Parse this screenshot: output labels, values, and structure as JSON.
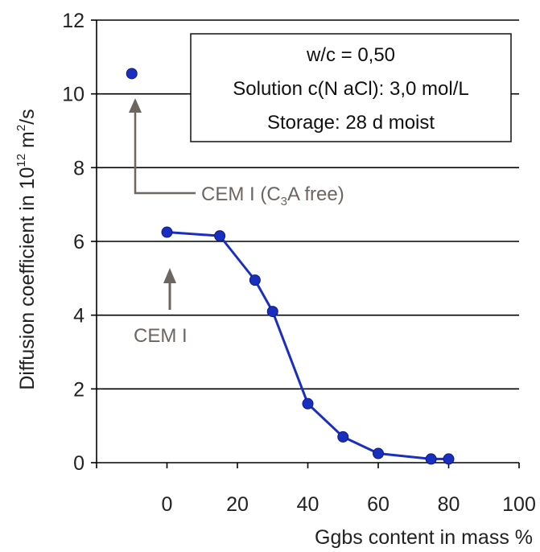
{
  "chart_data": {
    "type": "line",
    "xlabel": "Ggbs content in mass %",
    "ylabel": {
      "prefix": "Diffusion coefficient in 10",
      "exp": "12",
      "middle": " m",
      "exp2": "2",
      "suffix": "/s"
    },
    "xlim": [
      -20,
      100
    ],
    "ylim": [
      0,
      12
    ],
    "x_ticks": [
      0,
      20,
      40,
      60,
      80,
      100
    ],
    "y_ticks": [
      0,
      2,
      4,
      6,
      8,
      10,
      12
    ],
    "grid": "horizontal",
    "series": [
      {
        "color": "#1a2fbf",
        "x": [
          0,
          15,
          25,
          30,
          40,
          50,
          60,
          75,
          80
        ],
        "y": [
          6.25,
          6.15,
          4.95,
          4.1,
          1.6,
          0.7,
          0.25,
          0.1,
          0.1
        ]
      }
    ],
    "extra_point": {
      "x": -10,
      "y": 10.55,
      "color": "#1a2fbf"
    },
    "info_box": [
      "w/c = 0,50",
      "Solution c(N aCl): 3,0 mol/L",
      "Storage: 28 d moist"
    ],
    "annotations": {
      "cem_free": {
        "prefix": "CEM I (C",
        "sub": "3",
        "suffix": "A free)"
      },
      "cem": "CEM I"
    },
    "arrow_color": "#6d6560"
  }
}
